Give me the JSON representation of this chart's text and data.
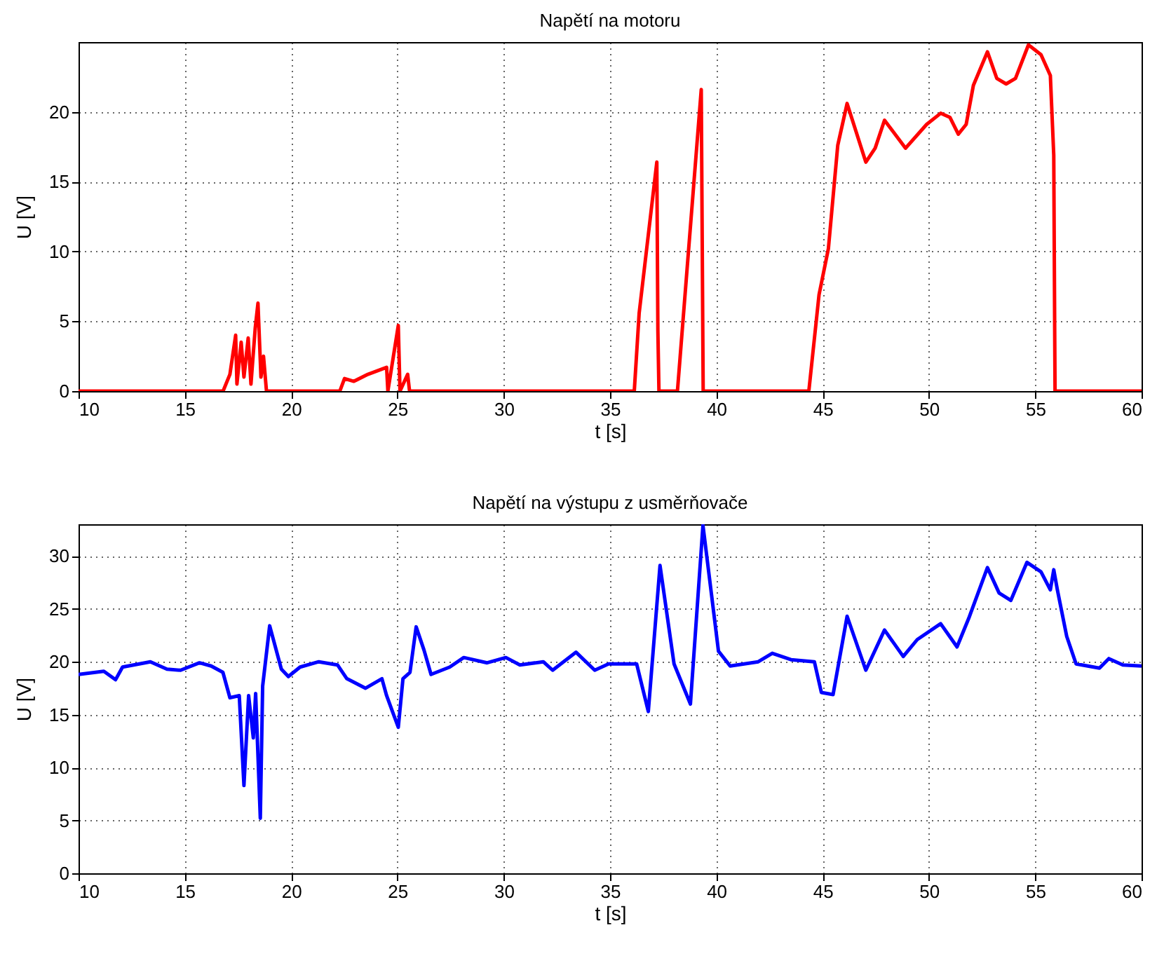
{
  "chart_data": [
    {
      "type": "line",
      "title": "Napětí na motoru",
      "xlabel": "t [s]",
      "ylabel": "U [V]",
      "xlim": [
        10,
        60
      ],
      "xticks": [
        10,
        15,
        20,
        25,
        30,
        35,
        40,
        45,
        50,
        55,
        60
      ],
      "ylim": [
        0,
        25
      ],
      "yticks": [
        0,
        5,
        10,
        15,
        20
      ],
      "grid": true,
      "series": [
        {
          "color": "#ff0000",
          "x": [
            10,
            16.8,
            17.12,
            17.39,
            17.45,
            17.65,
            17.78,
            17.98,
            18.11,
            18.31,
            18.44,
            18.58,
            18.7,
            18.84,
            22.29,
            22.51,
            22.95,
            23.61,
            24.49,
            24.55,
            25.04,
            25.12,
            25.48,
            25.57,
            36.14,
            36.37,
            37.2,
            37.25,
            37.3,
            38.17,
            39.29,
            39.38,
            44.35,
            44.83,
            45.27,
            45.71,
            46.15,
            47.03,
            47.47,
            47.91,
            48.9,
            49.89,
            50.55,
            50.99,
            51.38,
            51.75,
            52.09,
            52.75,
            53.19,
            53.63,
            54.07,
            54.68,
            55.27,
            55.71,
            55.87,
            55.93,
            60
          ],
          "values": [
            0,
            0,
            1.2,
            4,
            0.5,
            3.5,
            1,
            3.8,
            0.5,
            4.5,
            6.3,
            1,
            2.5,
            0,
            0,
            0.9,
            0.7,
            1.2,
            1.7,
            0,
            4.7,
            0,
            1.2,
            0,
            0,
            5.6,
            16.4,
            4.3,
            0,
            0,
            21.6,
            0,
            0,
            6.9,
            10.2,
            17.6,
            20.6,
            16.4,
            17.4,
            19.4,
            17.4,
            19.1,
            19.9,
            19.6,
            18.4,
            19.1,
            21.9,
            24.3,
            22.4,
            22,
            22.4,
            24.8,
            24.1,
            22.6,
            16.9,
            0,
            0
          ]
        }
      ]
    },
    {
      "type": "line",
      "title": "Napětí na výstupu z usměrňovače",
      "xlabel": "t [s]",
      "ylabel": "U [V]",
      "xlim": [
        10,
        60
      ],
      "xticks": [
        10,
        15,
        20,
        25,
        30,
        35,
        40,
        45,
        50,
        55,
        60
      ],
      "ylim": [
        0,
        33
      ],
      "yticks": [
        0,
        5,
        10,
        15,
        20,
        25,
        30
      ],
      "grid": true,
      "series": [
        {
          "color": "#0000ff",
          "x": [
            10,
            11.19,
            11.74,
            12.07,
            13.38,
            14.16,
            14.8,
            15.69,
            16.24,
            16.79,
            17.12,
            17.56,
            17.78,
            18,
            18.22,
            18.33,
            18.55,
            18.66,
            18.99,
            19.54,
            19.87,
            20.42,
            21.3,
            22.18,
            22.62,
            23.5,
            24.27,
            24.49,
            25.04,
            25.26,
            25.59,
            25.88,
            26.25,
            26.58,
            27.46,
            28.12,
            29.22,
            30.1,
            30.76,
            31.86,
            32.3,
            33.4,
            34.28,
            34.93,
            36.25,
            36.8,
            37.35,
            38.01,
            38.78,
            39.37,
            40.1,
            40.65,
            41.97,
            42.63,
            43.51,
            44.61,
            44.94,
            45.49,
            46.15,
            47.03,
            47.91,
            48.79,
            49.45,
            50.55,
            51.32,
            51.87,
            52.75,
            53.3,
            53.85,
            54.61,
            55.27,
            55.71,
            55.87,
            56.04,
            56.48,
            56.92,
            58.02,
            58.46,
            59.12,
            60
          ],
          "values": [
            18.8,
            19.1,
            18.3,
            19.5,
            20,
            19.3,
            19.2,
            19.9,
            19.6,
            19,
            16.6,
            16.8,
            8.3,
            16.8,
            12.8,
            17,
            5.2,
            17.7,
            23.4,
            19.3,
            18.6,
            19.5,
            20,
            19.7,
            18.4,
            17.5,
            18.4,
            16.8,
            13.8,
            18.4,
            19,
            23.3,
            21.1,
            18.8,
            19.5,
            20.4,
            19.9,
            20.4,
            19.7,
            20,
            19.2,
            20.9,
            19.2,
            19.8,
            19.8,
            15.3,
            29.1,
            19.8,
            16,
            32.9,
            21,
            19.6,
            20,
            20.8,
            20.2,
            20,
            17.1,
            16.9,
            24.3,
            19.2,
            23,
            20.5,
            22.1,
            23.6,
            21.4,
            24.1,
            28.9,
            26.5,
            25.8,
            29.4,
            28.5,
            26.8,
            28.7,
            26.8,
            22.4,
            19.8,
            19.4,
            20.3,
            19.7,
            19.6
          ]
        }
      ]
    }
  ]
}
